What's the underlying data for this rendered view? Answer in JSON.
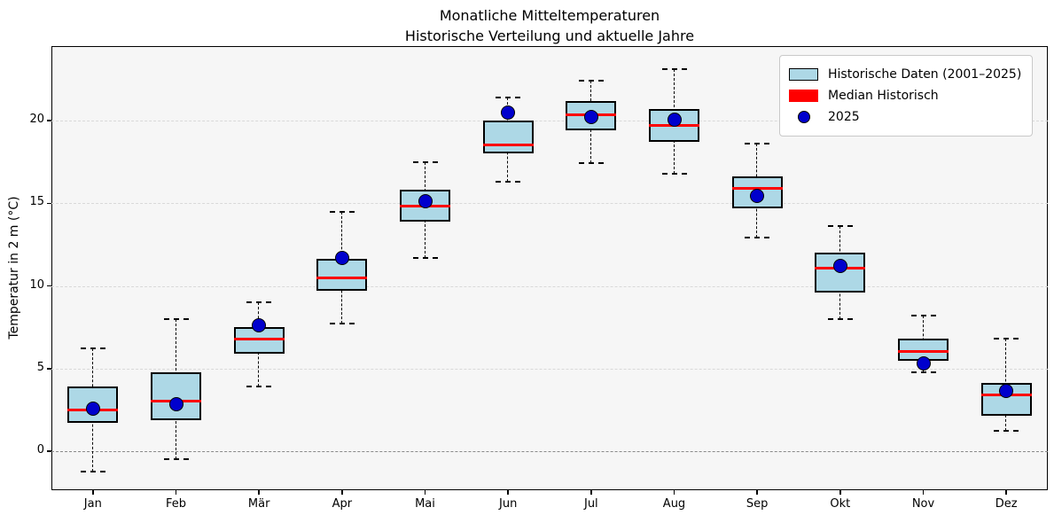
{
  "chart_data": {
    "type": "boxplot",
    "title": "Monatliche Mitteltemperaturen",
    "subtitle": "Historische Verteilung und aktuelle Jahre",
    "ylabel": "Temperatur in 2 m (°C)",
    "categories": [
      "Jan",
      "Feb",
      "Mär",
      "Apr",
      "Mai",
      "Jun",
      "Jul",
      "Aug",
      "Sep",
      "Okt",
      "Nov",
      "Dez"
    ],
    "yticks": [
      0,
      5,
      10,
      15,
      20
    ],
    "ylim": [
      -2.35,
      24.5
    ],
    "grid": true,
    "zero_line": 0,
    "boxes": [
      {
        "month": "Jan",
        "whisker_low": -1.2,
        "q1": 1.7,
        "median": 2.5,
        "q3": 3.9,
        "whisker_high": 6.2
      },
      {
        "month": "Feb",
        "whisker_low": -0.5,
        "q1": 1.9,
        "median": 3.05,
        "q3": 4.8,
        "whisker_high": 8.0
      },
      {
        "month": "Mär",
        "whisker_low": 3.9,
        "q1": 5.9,
        "median": 6.8,
        "q3": 7.5,
        "whisker_high": 9.0
      },
      {
        "month": "Apr",
        "whisker_low": 7.7,
        "q1": 9.7,
        "median": 10.5,
        "q3": 11.65,
        "whisker_high": 14.5
      },
      {
        "month": "Mai",
        "whisker_low": 11.7,
        "q1": 13.9,
        "median": 14.8,
        "q3": 15.8,
        "whisker_high": 17.5
      },
      {
        "month": "Jun",
        "whisker_low": 16.3,
        "q1": 18.0,
        "median": 18.5,
        "q3": 20.0,
        "whisker_high": 21.4
      },
      {
        "month": "Jul",
        "whisker_low": 17.4,
        "q1": 19.4,
        "median": 20.35,
        "q3": 21.2,
        "whisker_high": 22.4
      },
      {
        "month": "Aug",
        "whisker_low": 16.8,
        "q1": 18.7,
        "median": 19.7,
        "q3": 20.7,
        "whisker_high": 23.1
      },
      {
        "month": "Sep",
        "whisker_low": 12.9,
        "q1": 14.7,
        "median": 15.9,
        "q3": 16.6,
        "whisker_high": 18.6
      },
      {
        "month": "Okt",
        "whisker_low": 8.0,
        "q1": 9.6,
        "median": 11.1,
        "q3": 12.0,
        "whisker_high": 13.6
      },
      {
        "month": "Nov",
        "whisker_low": 4.8,
        "q1": 5.5,
        "median": 6.05,
        "q3": 6.8,
        "whisker_high": 8.2
      },
      {
        "month": "Dez",
        "whisker_low": 1.25,
        "q1": 2.15,
        "median": 3.4,
        "q3": 4.15,
        "whisker_high": 6.8
      }
    ],
    "series_2025": [
      2.6,
      2.85,
      7.6,
      11.7,
      15.1,
      20.5,
      20.2,
      20.05,
      15.45,
      11.2,
      5.3,
      3.65
    ],
    "legend": {
      "position": "top-right",
      "items": [
        {
          "label": "Historische Daten (2001–2025)",
          "swatch": "box_fill"
        },
        {
          "label": "Median Historisch",
          "swatch": "median"
        },
        {
          "label": "2025",
          "swatch": "dot"
        }
      ]
    },
    "colors": {
      "box_fill": "#add8e6",
      "box_edge": "#000000",
      "median": "#ff0000",
      "dot": "#0000cd",
      "whisker": "#000000",
      "grid": "#d9d9d9",
      "zero_line": "#8a8a8a",
      "plot_background": "#f6f6f6"
    }
  }
}
